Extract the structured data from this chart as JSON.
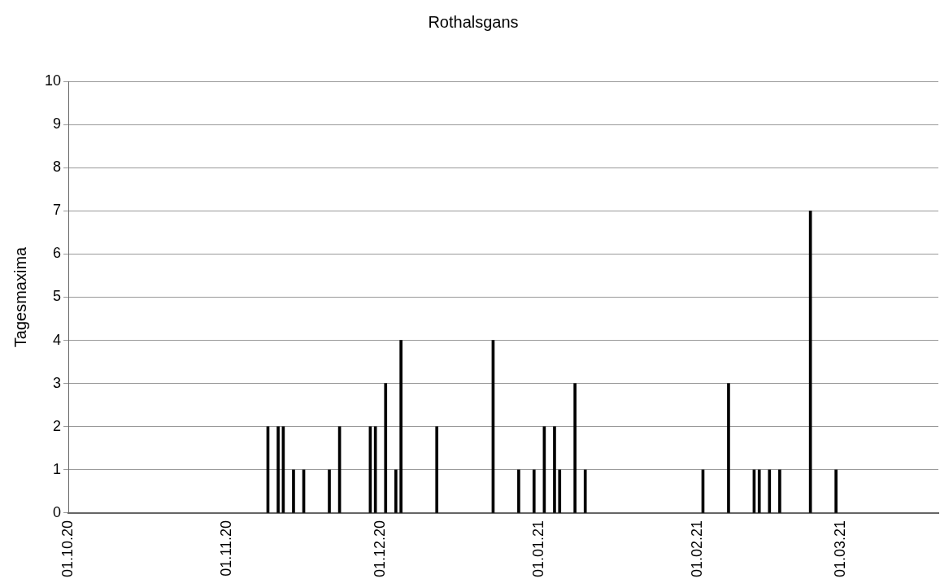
{
  "chart_data": {
    "type": "bar",
    "title": "Rothalsgans",
    "ylabel": "Tagesmaxima",
    "x": [
      "2020-11-09",
      "2020-11-11",
      "2020-11-12",
      "2020-11-14",
      "2020-11-16",
      "2020-11-21",
      "2020-11-23",
      "2020-11-29",
      "2020-11-30",
      "2020-12-02",
      "2020-12-04",
      "2020-12-05",
      "2020-12-12",
      "2020-12-23",
      "2020-12-28",
      "2020-12-31",
      "2021-01-02",
      "2021-01-04",
      "2021-01-05",
      "2021-01-08",
      "2021-01-10",
      "2021-02-02",
      "2021-02-07",
      "2021-02-12",
      "2021-02-13",
      "2021-02-15",
      "2021-02-17",
      "2021-02-23",
      "2021-02-28"
    ],
    "values": [
      2,
      2,
      2,
      1,
      1,
      1,
      2,
      2,
      2,
      3,
      1,
      4,
      2,
      4,
      1,
      1,
      2,
      2,
      1,
      3,
      1,
      1,
      3,
      1,
      1,
      1,
      1,
      7,
      1
    ],
    "color": "#000000",
    "xlim": [
      "2020-10-01",
      "2021-03-20"
    ],
    "xticks": [
      {
        "value": "2020-10-01",
        "label": "01.10.20"
      },
      {
        "value": "2020-11-01",
        "label": "01.11.20"
      },
      {
        "value": "2020-12-01",
        "label": "01.12.20"
      },
      {
        "value": "2021-01-01",
        "label": "01.01.21"
      },
      {
        "value": "2021-02-01",
        "label": "01.02.21"
      },
      {
        "value": "2021-03-01",
        "label": "01.03.21"
      }
    ],
    "ylim": [
      0,
      10
    ],
    "yticks": [
      0,
      1,
      2,
      3,
      4,
      5,
      6,
      7,
      8,
      9,
      10
    ],
    "grid": "y",
    "legend": false
  }
}
